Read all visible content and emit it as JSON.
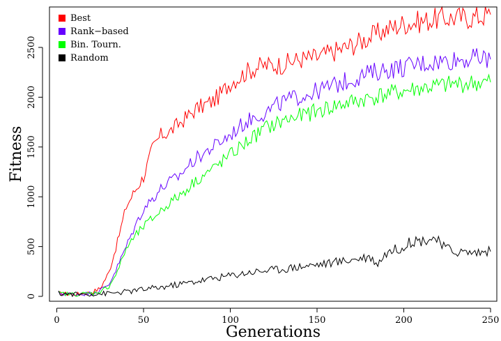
{
  "chart_data": {
    "type": "line",
    "title": "",
    "xlabel": "Generations",
    "ylabel": "Fitness",
    "xlim": [
      1,
      250
    ],
    "ylim": [
      0,
      2850
    ],
    "xticks": [
      0,
      50,
      100,
      150,
      200,
      250
    ],
    "yticks": [
      0,
      500,
      1000,
      1500,
      2000,
      2500
    ],
    "grid": false,
    "legend_position": "top-left",
    "series": [
      {
        "name": "Best",
        "color": "#ff0000",
        "points": [
          [
            1,
            30
          ],
          [
            10,
            20
          ],
          [
            20,
            40
          ],
          [
            25,
            80
          ],
          [
            30,
            240
          ],
          [
            35,
            550
          ],
          [
            40,
            900
          ],
          [
            45,
            1060
          ],
          [
            50,
            1200
          ],
          [
            55,
            1480
          ],
          [
            60,
            1620
          ],
          [
            65,
            1650
          ],
          [
            70,
            1730
          ],
          [
            75,
            1800
          ],
          [
            80,
            1880
          ],
          [
            85,
            1920
          ],
          [
            90,
            1960
          ],
          [
            95,
            2040
          ],
          [
            100,
            2150
          ],
          [
            105,
            2200
          ],
          [
            110,
            2260
          ],
          [
            115,
            2300
          ],
          [
            120,
            2320
          ],
          [
            125,
            2320
          ],
          [
            130,
            2330
          ],
          [
            140,
            2380
          ],
          [
            150,
            2400
          ],
          [
            160,
            2460
          ],
          [
            170,
            2520
          ],
          [
            180,
            2600
          ],
          [
            190,
            2680
          ],
          [
            200,
            2740
          ],
          [
            210,
            2760
          ],
          [
            220,
            2790
          ],
          [
            230,
            2800
          ],
          [
            240,
            2800
          ],
          [
            250,
            2830
          ]
        ]
      },
      {
        "name": "Rank−based",
        "color": "#6600ff",
        "points": [
          [
            1,
            30
          ],
          [
            10,
            20
          ],
          [
            20,
            30
          ],
          [
            25,
            60
          ],
          [
            30,
            120
          ],
          [
            35,
            300
          ],
          [
            40,
            500
          ],
          [
            45,
            700
          ],
          [
            50,
            880
          ],
          [
            55,
            980
          ],
          [
            60,
            1080
          ],
          [
            65,
            1150
          ],
          [
            70,
            1200
          ],
          [
            75,
            1300
          ],
          [
            80,
            1380
          ],
          [
            85,
            1440
          ],
          [
            90,
            1500
          ],
          [
            95,
            1560
          ],
          [
            100,
            1620
          ],
          [
            105,
            1700
          ],
          [
            110,
            1760
          ],
          [
            115,
            1820
          ],
          [
            120,
            1840
          ],
          [
            125,
            1900
          ],
          [
            130,
            1950
          ],
          [
            140,
            2010
          ],
          [
            150,
            2060
          ],
          [
            160,
            2120
          ],
          [
            170,
            2180
          ],
          [
            180,
            2240
          ],
          [
            190,
            2280
          ],
          [
            200,
            2300
          ],
          [
            210,
            2340
          ],
          [
            220,
            2360
          ],
          [
            230,
            2380
          ],
          [
            240,
            2390
          ],
          [
            250,
            2380
          ]
        ]
      },
      {
        "name": "Bin. Tourn.",
        "color": "#00ff00",
        "points": [
          [
            1,
            30
          ],
          [
            10,
            20
          ],
          [
            20,
            30
          ],
          [
            25,
            50
          ],
          [
            30,
            100
          ],
          [
            35,
            250
          ],
          [
            40,
            480
          ],
          [
            45,
            600
          ],
          [
            50,
            700
          ],
          [
            55,
            780
          ],
          [
            60,
            860
          ],
          [
            65,
            940
          ],
          [
            70,
            1000
          ],
          [
            75,
            1080
          ],
          [
            80,
            1160
          ],
          [
            85,
            1220
          ],
          [
            90,
            1280
          ],
          [
            95,
            1350
          ],
          [
            100,
            1420
          ],
          [
            105,
            1490
          ],
          [
            110,
            1560
          ],
          [
            115,
            1620
          ],
          [
            120,
            1690
          ],
          [
            125,
            1720
          ],
          [
            130,
            1760
          ],
          [
            140,
            1810
          ],
          [
            150,
            1860
          ],
          [
            160,
            1910
          ],
          [
            170,
            1950
          ],
          [
            180,
            1990
          ],
          [
            190,
            2030
          ],
          [
            200,
            2060
          ],
          [
            210,
            2090
          ],
          [
            220,
            2110
          ],
          [
            230,
            2130
          ],
          [
            240,
            2140
          ],
          [
            250,
            2150
          ]
        ]
      },
      {
        "name": "Random",
        "color": "#000000",
        "points": [
          [
            1,
            30
          ],
          [
            10,
            20
          ],
          [
            20,
            25
          ],
          [
            30,
            30
          ],
          [
            40,
            45
          ],
          [
            50,
            70
          ],
          [
            60,
            90
          ],
          [
            70,
            120
          ],
          [
            80,
            150
          ],
          [
            90,
            180
          ],
          [
            100,
            210
          ],
          [
            110,
            240
          ],
          [
            120,
            260
          ],
          [
            130,
            275
          ],
          [
            140,
            300
          ],
          [
            150,
            320
          ],
          [
            160,
            340
          ],
          [
            170,
            370
          ],
          [
            180,
            400
          ],
          [
            185,
            330
          ],
          [
            190,
            440
          ],
          [
            200,
            500
          ],
          [
            205,
            560
          ],
          [
            210,
            560
          ],
          [
            218,
            590
          ],
          [
            222,
            500
          ],
          [
            230,
            450
          ],
          [
            240,
            440
          ],
          [
            250,
            450
          ]
        ]
      }
    ]
  }
}
